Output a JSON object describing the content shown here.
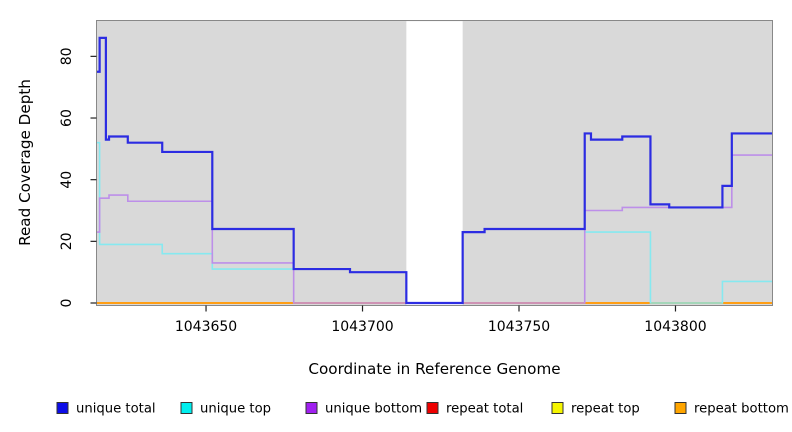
{
  "chart_data": {
    "type": "line",
    "subtype": "step-coverage-plot",
    "title": "",
    "xlabel": "Coordinate in Reference Genome",
    "ylabel": "Read Coverage Depth",
    "x_tick_values": [
      1043650,
      1043700,
      1043750,
      1043800
    ],
    "y_tick_values": [
      0,
      20,
      40,
      60,
      80
    ],
    "xlim": [
      1043615,
      1043831
    ],
    "ylim": [
      0,
      91.5
    ],
    "grid": false,
    "plot_bg_color": "#d9d9d9",
    "box_color": "#888888",
    "tick_color": "#222222",
    "no_data_gap_x": [
      1043714,
      1043732
    ],
    "legend_position": "bottom",
    "series": [
      {
        "name": "unique total",
        "color": "#2c2ce2",
        "legend_color": "#0d0de8",
        "line_width": 2.2,
        "steps": [
          [
            1043615,
            75
          ],
          [
            1043616,
            86
          ],
          [
            1043618,
            53
          ],
          [
            1043619,
            54
          ],
          [
            1043625,
            52
          ],
          [
            1043636,
            49
          ],
          [
            1043652,
            24
          ],
          [
            1043678,
            11
          ],
          [
            1043696,
            10
          ],
          [
            1043714,
            0
          ],
          [
            1043732,
            23
          ],
          [
            1043739,
            24
          ],
          [
            1043771,
            55
          ],
          [
            1043773,
            53
          ],
          [
            1043783,
            54
          ],
          [
            1043792,
            32
          ],
          [
            1043798,
            31
          ],
          [
            1043815,
            38
          ],
          [
            1043818,
            55
          ]
        ]
      },
      {
        "name": "unique top",
        "color": "#86e9f0",
        "legend_color": "#00eeee",
        "line_width": 1.6,
        "steps": [
          [
            1043615,
            52
          ],
          [
            1043616,
            19
          ],
          [
            1043636,
            16
          ],
          [
            1043652,
            11
          ],
          [
            1043696,
            10
          ],
          [
            1043714,
            0
          ],
          [
            1043732,
            23
          ],
          [
            1043739,
            24
          ],
          [
            1043771,
            23
          ],
          [
            1043792,
            0
          ],
          [
            1043815,
            7
          ]
        ]
      },
      {
        "name": "unique bottom",
        "color": "#bd8fe9",
        "legend_color": "#a020f0",
        "line_width": 1.6,
        "steps": [
          [
            1043615,
            23
          ],
          [
            1043616,
            34
          ],
          [
            1043619,
            35
          ],
          [
            1043625,
            33
          ],
          [
            1043652,
            13
          ],
          [
            1043678,
            0
          ],
          [
            1043771,
            30
          ],
          [
            1043783,
            31
          ],
          [
            1043818,
            48
          ]
        ]
      },
      {
        "name": "repeat total",
        "color": "#e23333",
        "legend_color": "#ee0000",
        "line_width": 2,
        "steps": [
          [
            1043615,
            0
          ]
        ]
      },
      {
        "name": "repeat top",
        "color": "#f2f200",
        "legend_color": "#f5f500",
        "line_width": 1.6,
        "steps": [
          [
            1043615,
            0
          ]
        ]
      },
      {
        "name": "repeat bottom",
        "color": "#ff9e14",
        "legend_color": "#ffa500",
        "line_width": 2,
        "steps": [
          [
            1043615,
            0
          ]
        ]
      }
    ],
    "z_order": [
      3,
      4,
      5,
      1,
      2,
      0
    ]
  }
}
